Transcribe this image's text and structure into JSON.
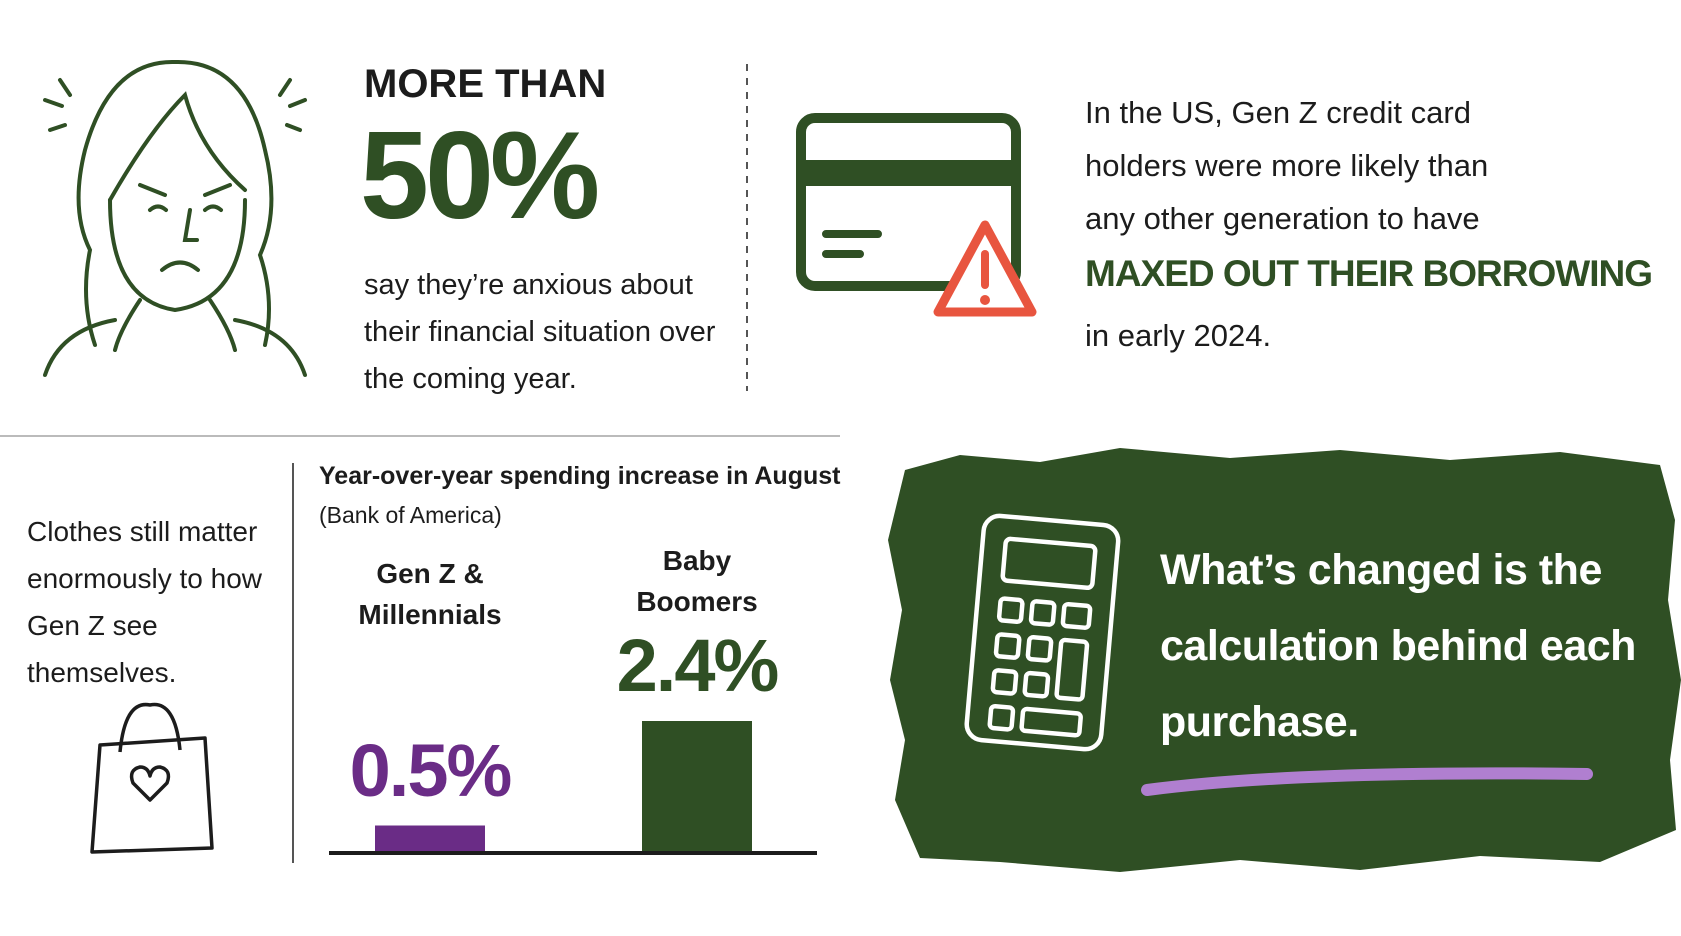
{
  "anxiety": {
    "lead": "MORE THAN",
    "figure": "50%",
    "text": "say they’re anxious about their financial situation over the coming year."
  },
  "credit": {
    "text": "In the US, Gen Z credit card holders were more likely than any other generation to have",
    "highlight": "MAXED OUT THEIR BORROWING",
    "tail": "in early 2024."
  },
  "clothes": {
    "text": "Clothes still matter enormously to how Gen Z see themselves."
  },
  "chart_data": {
    "type": "bar",
    "title": "Year-over-year spending increase in August",
    "subtitle": "(Bank of America)",
    "categories": [
      "Gen Z & Millennials",
      "Baby Boomers"
    ],
    "values": [
      0.5,
      2.4
    ],
    "value_labels": [
      "0.5%",
      "2.4%"
    ],
    "colors": [
      "#6a2c86",
      "#2f4f24"
    ]
  },
  "callout": {
    "text": "What’s changed is the calculation behind each purchase."
  }
}
